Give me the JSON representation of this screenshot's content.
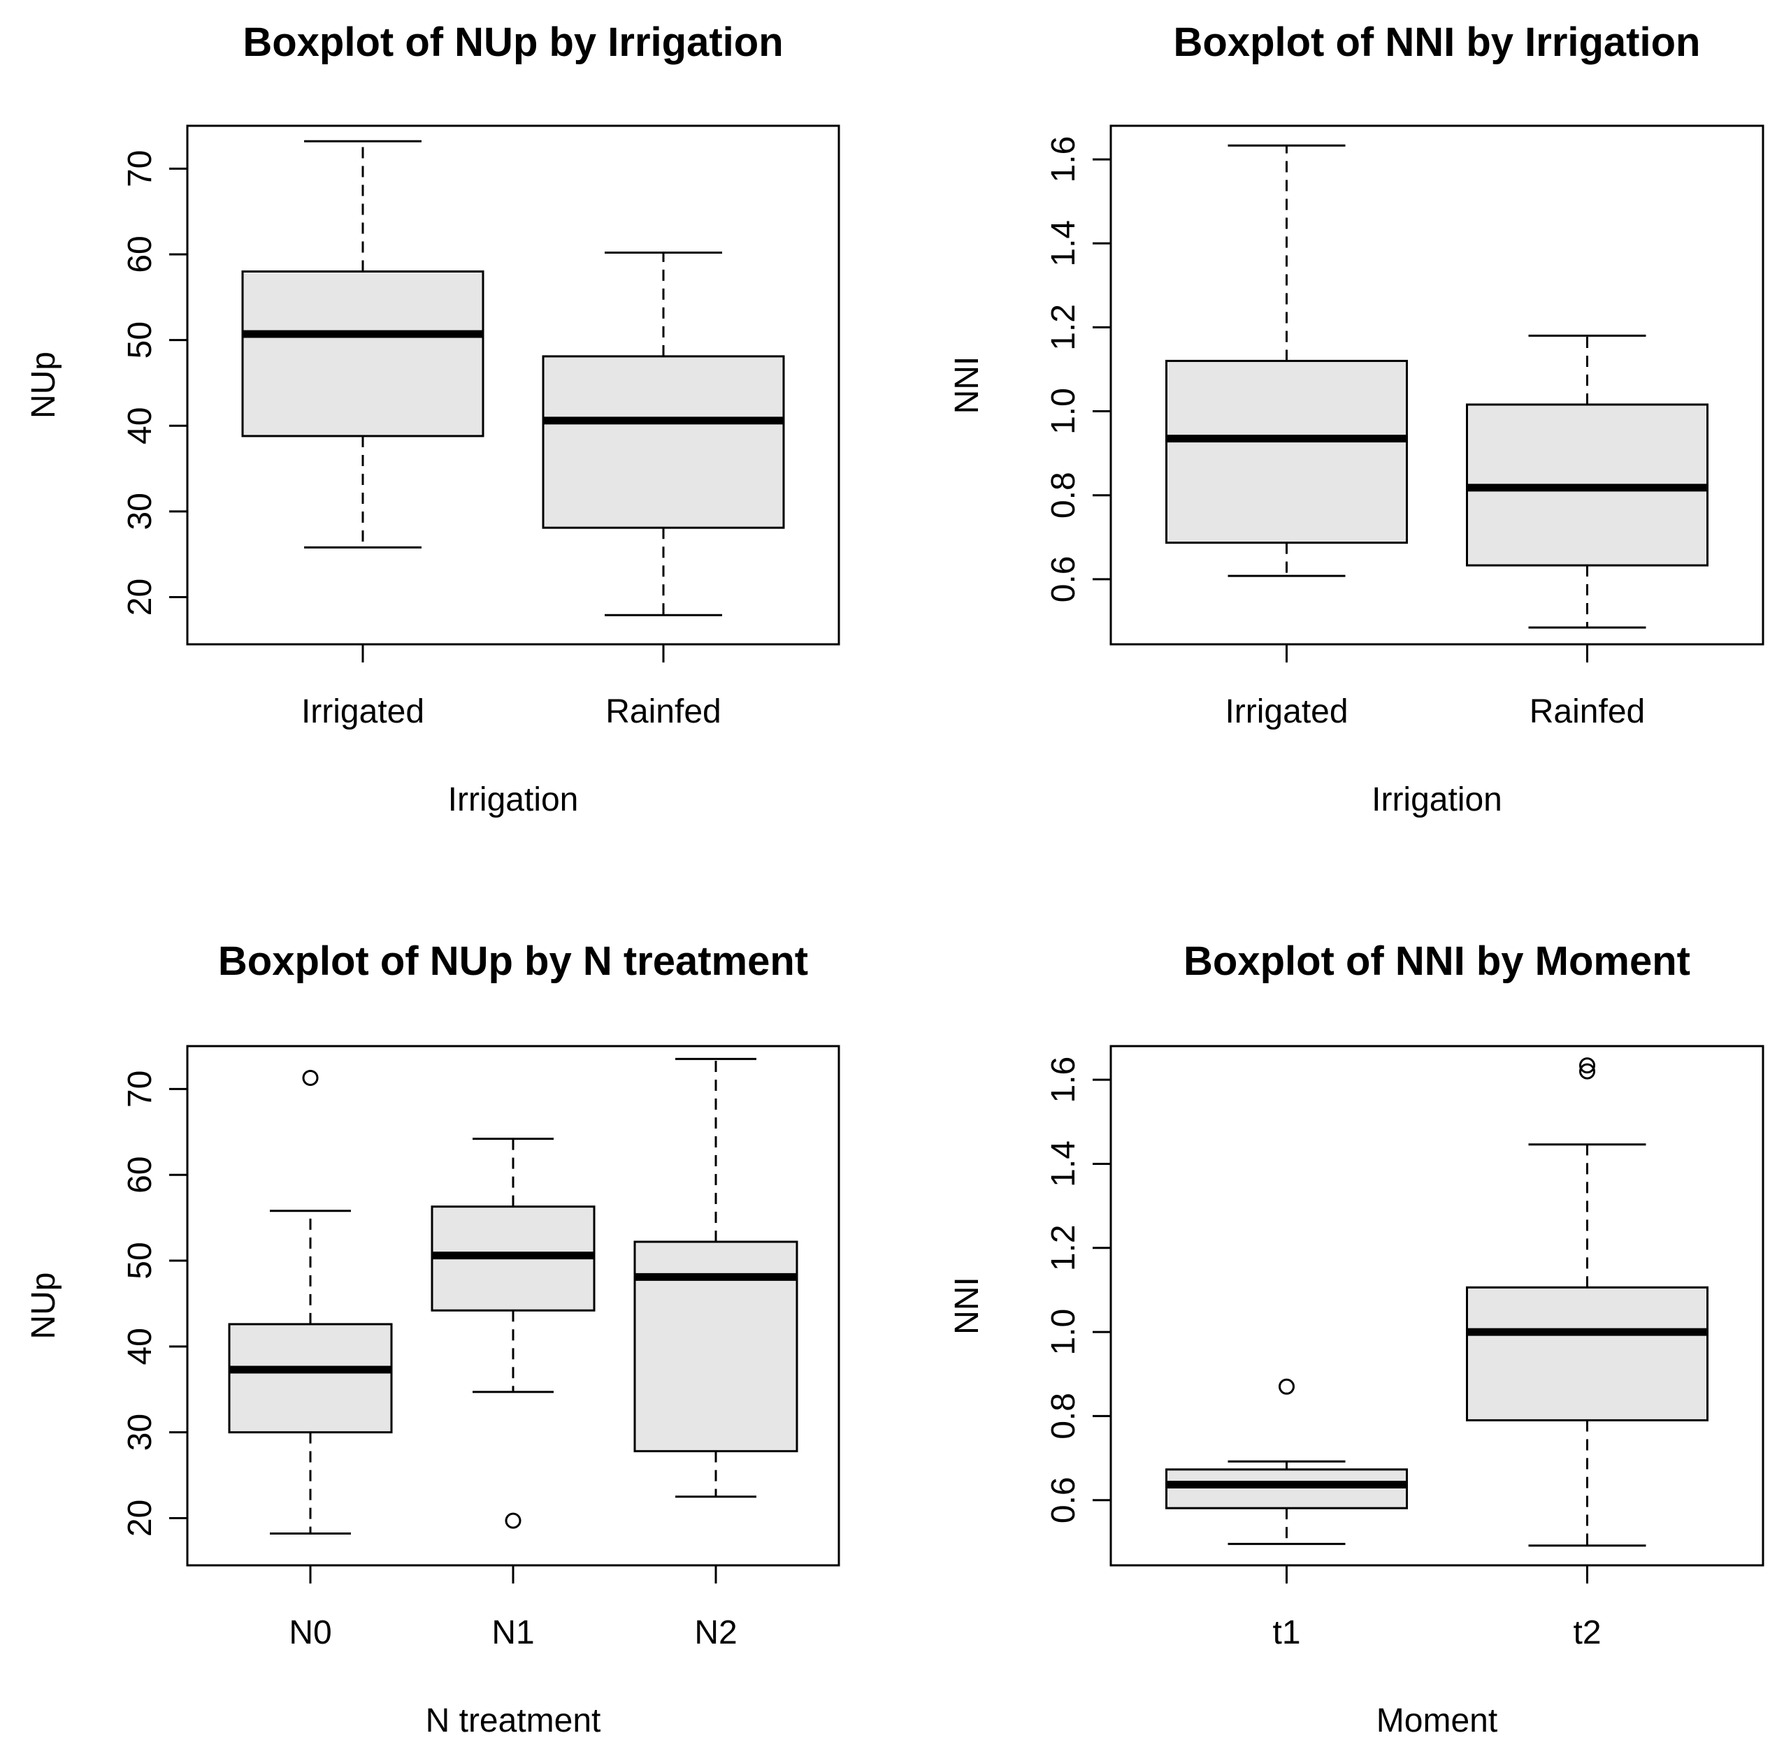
{
  "chart_data": [
    {
      "type": "boxplot",
      "title": "Boxplot of NUp by Irrigation",
      "xlabel": "Irrigation",
      "ylabel": "NUp",
      "ylim": [
        14.5,
        75
      ],
      "yticks": [
        "20",
        "30",
        "40",
        "50",
        "60",
        "70"
      ],
      "categories": [
        "Irrigated",
        "Rainfed"
      ],
      "boxes": [
        {
          "category": "Irrigated",
          "min": 25.8,
          "q1": 38.8,
          "median": 50.7,
          "q3": 58.0,
          "max": 73.2,
          "outliers": []
        },
        {
          "category": "Rainfed",
          "min": 17.9,
          "q1": 28.1,
          "median": 40.6,
          "q3": 48.1,
          "max": 60.2,
          "outliers": []
        }
      ]
    },
    {
      "type": "boxplot",
      "title": "Boxplot of NNI by Irrigation",
      "xlabel": "Irrigation",
      "ylabel": "NNI",
      "ylim": [
        0.445,
        1.68
      ],
      "yticks": [
        "0.6",
        "0.8",
        "1.0",
        "1.2",
        "1.4",
        "1.6"
      ],
      "categories": [
        "Irrigated",
        "Rainfed"
      ],
      "boxes": [
        {
          "category": "Irrigated",
          "min": 0.608,
          "q1": 0.687,
          "median": 0.935,
          "q3": 1.12,
          "max": 1.633,
          "outliers": []
        },
        {
          "category": "Rainfed",
          "min": 0.485,
          "q1": 0.633,
          "median": 0.818,
          "q3": 1.016,
          "max": 1.18,
          "outliers": []
        }
      ]
    },
    {
      "type": "boxplot",
      "title": "Boxplot of NUp by N treatment",
      "xlabel": "N treatment",
      "ylabel": "NUp",
      "ylim": [
        14.5,
        75
      ],
      "yticks": [
        "20",
        "30",
        "40",
        "50",
        "60",
        "70"
      ],
      "categories": [
        "N0",
        "N1",
        "N2"
      ],
      "boxes": [
        {
          "category": "N0",
          "min": 18.2,
          "q1": 30.0,
          "median": 37.3,
          "q3": 42.6,
          "max": 55.8,
          "outliers": [
            71.3
          ]
        },
        {
          "category": "N1",
          "min": 34.7,
          "q1": 44.2,
          "median": 50.6,
          "q3": 56.3,
          "max": 64.2,
          "outliers": [
            19.7
          ]
        },
        {
          "category": "N2",
          "min": 22.5,
          "q1": 27.8,
          "median": 48.1,
          "q3": 52.2,
          "max": 73.5,
          "outliers": []
        }
      ]
    },
    {
      "type": "boxplot",
      "title": "Boxplot of NNI by Moment",
      "xlabel": "Moment",
      "ylabel": "NNI",
      "ylim": [
        0.445,
        1.68
      ],
      "yticks": [
        "0.6",
        "0.8",
        "1.0",
        "1.2",
        "1.4",
        "1.6"
      ],
      "categories": [
        "t1",
        "t2"
      ],
      "boxes": [
        {
          "category": "t1",
          "min": 0.496,
          "q1": 0.581,
          "median": 0.637,
          "q3": 0.673,
          "max": 0.692,
          "outliers": [
            0.87
          ]
        },
        {
          "category": "t2",
          "min": 0.492,
          "q1": 0.79,
          "median": 1.0,
          "q3": 1.106,
          "max": 1.446,
          "outliers": [
            1.62,
            1.634
          ]
        }
      ]
    }
  ]
}
